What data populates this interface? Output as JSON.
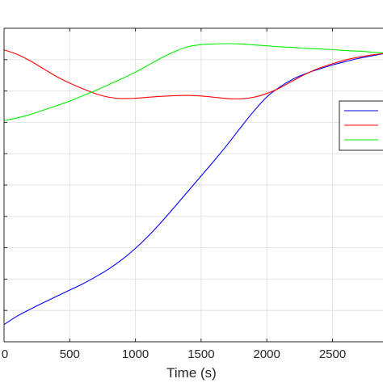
{
  "chart_data": {
    "type": "line",
    "xlabel": "Time (s)",
    "ylabel": "",
    "title": "",
    "xlim": [
      0,
      2900
    ],
    "ylim": [
      0,
      1
    ],
    "x_ticks": [
      0,
      500,
      1000,
      1500,
      2000,
      2500
    ],
    "x_tick_labels": [
      "0",
      "500",
      "1000",
      "1500",
      "2000",
      "2500"
    ],
    "y_gridlines": [
      0.1,
      0.2,
      0.3,
      0.4,
      0.5,
      0.6,
      0.7,
      0.8,
      0.9
    ],
    "grid": true,
    "legend": {
      "placement": "right",
      "entries": [
        "",
        "",
        ""
      ]
    },
    "series": [
      {
        "color": "#0000ff",
        "x": [
          0,
          100,
          200,
          300,
          400,
          500,
          600,
          700,
          800,
          900,
          1000,
          1100,
          1200,
          1300,
          1400,
          1500,
          1600,
          1700,
          1800,
          1900,
          2000,
          2100,
          2200,
          2300,
          2400,
          2500,
          2600,
          2700,
          2800,
          2900
        ],
        "values": [
          0.055,
          0.082,
          0.104,
          0.125,
          0.145,
          0.165,
          0.185,
          0.208,
          0.233,
          0.263,
          0.298,
          0.338,
          0.383,
          0.431,
          0.48,
          0.529,
          0.578,
          0.629,
          0.683,
          0.735,
          0.781,
          0.813,
          0.838,
          0.856,
          0.87,
          0.883,
          0.894,
          0.904,
          0.912,
          0.92
        ]
      },
      {
        "color": "#ff0000",
        "x": [
          0,
          100,
          200,
          300,
          400,
          500,
          600,
          700,
          800,
          900,
          1000,
          1100,
          1200,
          1300,
          1400,
          1500,
          1600,
          1700,
          1800,
          1900,
          2000,
          2100,
          2200,
          2300,
          2400,
          2500,
          2600,
          2700,
          2800,
          2900
        ],
        "values": [
          0.931,
          0.917,
          0.896,
          0.871,
          0.846,
          0.825,
          0.807,
          0.791,
          0.78,
          0.776,
          0.777,
          0.78,
          0.783,
          0.785,
          0.786,
          0.784,
          0.78,
          0.776,
          0.775,
          0.78,
          0.792,
          0.81,
          0.833,
          0.855,
          0.873,
          0.887,
          0.899,
          0.908,
          0.915,
          0.92
        ]
      },
      {
        "color": "#00ee00",
        "x": [
          0,
          100,
          200,
          300,
          400,
          500,
          600,
          700,
          800,
          900,
          1000,
          1100,
          1200,
          1300,
          1400,
          1500,
          1600,
          1700,
          1800,
          1900,
          2000,
          2100,
          2200,
          2300,
          2400,
          2500,
          2600,
          2700,
          2800,
          2900
        ],
        "values": [
          0.706,
          0.714,
          0.725,
          0.739,
          0.753,
          0.768,
          0.785,
          0.802,
          0.821,
          0.84,
          0.86,
          0.883,
          0.906,
          0.926,
          0.941,
          0.948,
          0.95,
          0.951,
          0.95,
          0.947,
          0.944,
          0.941,
          0.939,
          0.936,
          0.934,
          0.932,
          0.929,
          0.927,
          0.924,
          0.921
        ]
      }
    ]
  }
}
